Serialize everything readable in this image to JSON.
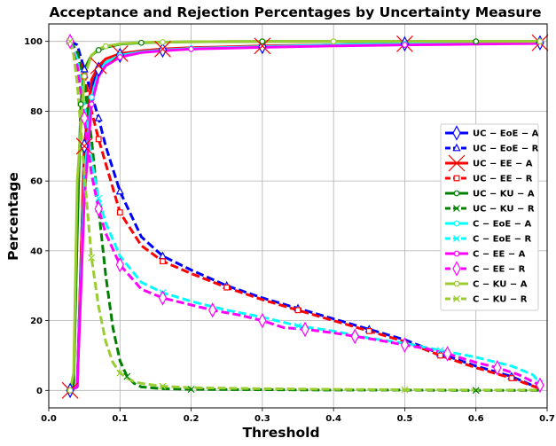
{
  "chart_data": {
    "type": "line",
    "title": "Acceptance and Rejection Percentages by Uncertainty Measure",
    "xlabel": "Threshold",
    "ylabel": "Percentage",
    "xlim": [
      0.0,
      0.7
    ],
    "ylim": [
      -5,
      105
    ],
    "xticks": [
      0.0,
      0.1,
      0.2,
      0.3,
      0.4,
      0.5,
      0.6,
      0.7
    ],
    "xtick_labels": [
      "0.0",
      "0.1",
      "0.2",
      "0.3",
      "0.4",
      "0.5",
      "0.6",
      "0.7"
    ],
    "yticks": [
      0,
      20,
      40,
      60,
      80,
      100
    ],
    "ytick_labels": [
      "0",
      "20",
      "40",
      "60",
      "80",
      "100"
    ],
    "grid": true,
    "legend_position": "center-right",
    "series": [
      {
        "name": "UC − EoE − A",
        "color": "#0000ff",
        "dash": "solid",
        "marker": "diamond-open",
        "markevery": 2,
        "x": [
          0.03,
          0.04,
          0.05,
          0.06,
          0.07,
          0.08,
          0.1,
          0.13,
          0.16,
          0.2,
          0.3,
          0.4,
          0.5,
          0.6,
          0.69
        ],
        "y": [
          0,
          1,
          70,
          87,
          92,
          94,
          96,
          97,
          97.5,
          98,
          98.5,
          99,
          99.3,
          99.5,
          99.6
        ]
      },
      {
        "name": "UC − EoE − R",
        "color": "#0000ff",
        "dash": "dashed",
        "marker": "triangle-open",
        "markevery": 2,
        "x": [
          0.03,
          0.04,
          0.05,
          0.06,
          0.07,
          0.08,
          0.1,
          0.13,
          0.16,
          0.2,
          0.25,
          0.3,
          0.35,
          0.4,
          0.45,
          0.5,
          0.55,
          0.6,
          0.65,
          0.69
        ],
        "y": [
          100,
          99,
          92,
          85,
          78,
          70,
          57,
          44,
          38.5,
          34.5,
          30,
          26.5,
          23.5,
          20.5,
          17.5,
          14.5,
          10.5,
          7,
          4,
          0.5
        ]
      },
      {
        "name": "UC − EE − A",
        "color": "#ff0000",
        "dash": "solid",
        "marker": "x",
        "markevery": 2,
        "x": [
          0.03,
          0.04,
          0.05,
          0.06,
          0.07,
          0.08,
          0.1,
          0.13,
          0.16,
          0.2,
          0.3,
          0.4,
          0.5,
          0.6,
          0.69
        ],
        "y": [
          0,
          1,
          70,
          89,
          93,
          95,
          96.5,
          97.3,
          97.8,
          98.2,
          98.7,
          99,
          99.3,
          99.5,
          99.6
        ]
      },
      {
        "name": "UC − EE − R",
        "color": "#ff0000",
        "dash": "dashed",
        "marker": "square-open",
        "markevery": 2,
        "x": [
          0.03,
          0.04,
          0.05,
          0.06,
          0.07,
          0.08,
          0.1,
          0.13,
          0.16,
          0.2,
          0.25,
          0.3,
          0.35,
          0.4,
          0.45,
          0.5,
          0.55,
          0.6,
          0.65,
          0.69
        ],
        "y": [
          100,
          97,
          90,
          80,
          72,
          65,
          51,
          41.5,
          37,
          33.5,
          29.5,
          26,
          23,
          20,
          17,
          14,
          10,
          6.5,
          3.5,
          0.5
        ]
      },
      {
        "name": "UC − KU − A",
        "color": "#008000",
        "dash": "solid",
        "marker": "circle-open",
        "markevery": 3,
        "x": [
          0.03,
          0.035,
          0.04,
          0.045,
          0.05,
          0.06,
          0.07,
          0.08,
          0.1,
          0.13,
          0.16,
          0.2,
          0.3,
          0.4,
          0.5,
          0.6,
          0.69
        ],
        "y": [
          0,
          2,
          45,
          82,
          92,
          96,
          97.5,
          98.3,
          99.2,
          99.6,
          99.8,
          99.9,
          100,
          100,
          100,
          100,
          100
        ]
      },
      {
        "name": "UC − KU − R",
        "color": "#008000",
        "dash": "dashed",
        "marker": "x",
        "markevery": 4,
        "x": [
          0.03,
          0.04,
          0.05,
          0.06,
          0.07,
          0.08,
          0.09,
          0.1,
          0.11,
          0.12,
          0.13,
          0.16,
          0.2,
          0.3,
          0.4,
          0.5,
          0.6,
          0.69
        ],
        "y": [
          100,
          97,
          88,
          72,
          52,
          33,
          18,
          8.5,
          4,
          2,
          1,
          0.5,
          0.3,
          0.2,
          0.1,
          0.1,
          0,
          0
        ]
      },
      {
        "name": "C − EoE − A",
        "color": "#00ffff",
        "dash": "solid",
        "marker": "circle-open",
        "markevery": 3,
        "x": [
          0.03,
          0.04,
          0.05,
          0.06,
          0.07,
          0.08,
          0.1,
          0.13,
          0.16,
          0.2,
          0.3,
          0.4,
          0.5,
          0.6,
          0.69
        ],
        "y": [
          0,
          1,
          60,
          84,
          91,
          94,
          96,
          97,
          97.5,
          98,
          98.5,
          99,
          99.3,
          99.5,
          99.6
        ]
      },
      {
        "name": "C − EoE − R",
        "color": "#00ffff",
        "dash": "dashed",
        "marker": "x",
        "markevery": 4,
        "x": [
          0.03,
          0.04,
          0.05,
          0.06,
          0.07,
          0.08,
          0.1,
          0.13,
          0.16,
          0.2,
          0.25,
          0.3,
          0.35,
          0.4,
          0.45,
          0.5,
          0.55,
          0.6,
          0.65,
          0.68,
          0.69
        ],
        "y": [
          100,
          95,
          82,
          66,
          55,
          48,
          38.5,
          31,
          28,
          25.5,
          23,
          21,
          18.5,
          17,
          15,
          13.5,
          11.5,
          9.5,
          7,
          4.5,
          2
        ]
      },
      {
        "name": "C − EE − A",
        "color": "#ff00ff",
        "dash": "solid",
        "marker": "circle-open",
        "markevery": 3,
        "x": [
          0.03,
          0.04,
          0.05,
          0.06,
          0.07,
          0.08,
          0.1,
          0.13,
          0.16,
          0.2,
          0.3,
          0.4,
          0.5,
          0.6,
          0.69
        ],
        "y": [
          0,
          1,
          55,
          82,
          90,
          93,
          95.5,
          96.8,
          97.3,
          97.8,
          98.3,
          98.7,
          99,
          99.2,
          99.4
        ]
      },
      {
        "name": "C − EE − R",
        "color": "#ff00ff",
        "dash": "dashed",
        "marker": "diamond-open",
        "markevery": 2,
        "x": [
          0.03,
          0.04,
          0.05,
          0.06,
          0.07,
          0.08,
          0.1,
          0.13,
          0.16,
          0.2,
          0.23,
          0.27,
          0.3,
          0.33,
          0.36,
          0.4,
          0.43,
          0.46,
          0.5,
          0.53,
          0.56,
          0.6,
          0.63,
          0.66,
          0.69
        ],
        "y": [
          100,
          93,
          78,
          62,
          52,
          45,
          36,
          29,
          26.5,
          24.5,
          23,
          21.5,
          20,
          18,
          17.5,
          16.5,
          15.5,
          14.5,
          13,
          12,
          10.5,
          8,
          6.5,
          4.5,
          1.5
        ]
      },
      {
        "name": "C − KU − A",
        "color": "#9acd32",
        "dash": "solid",
        "marker": "circle-open",
        "markevery": 3,
        "x": [
          0.03,
          0.035,
          0.04,
          0.05,
          0.06,
          0.07,
          0.08,
          0.1,
          0.13,
          0.16,
          0.2,
          0.3,
          0.4,
          0.5,
          0.6,
          0.69
        ],
        "y": [
          0,
          5,
          60,
          90,
          96,
          97.8,
          98.6,
          99.3,
          99.7,
          99.8,
          99.9,
          100,
          100,
          100,
          100,
          100
        ]
      },
      {
        "name": "C − KU − R",
        "color": "#9acd32",
        "dash": "dashed",
        "marker": "x",
        "markevery": 4,
        "x": [
          0.03,
          0.035,
          0.04,
          0.05,
          0.06,
          0.07,
          0.08,
          0.09,
          0.1,
          0.11,
          0.12,
          0.13,
          0.16,
          0.2,
          0.3,
          0.4,
          0.5,
          0.6,
          0.69
        ],
        "y": [
          100,
          96,
          88,
          62,
          38,
          24,
          14,
          8,
          5,
          3.5,
          2.5,
          2,
          1.2,
          0.8,
          0.5,
          0.3,
          0.2,
          0.1,
          0.1
        ]
      }
    ]
  }
}
